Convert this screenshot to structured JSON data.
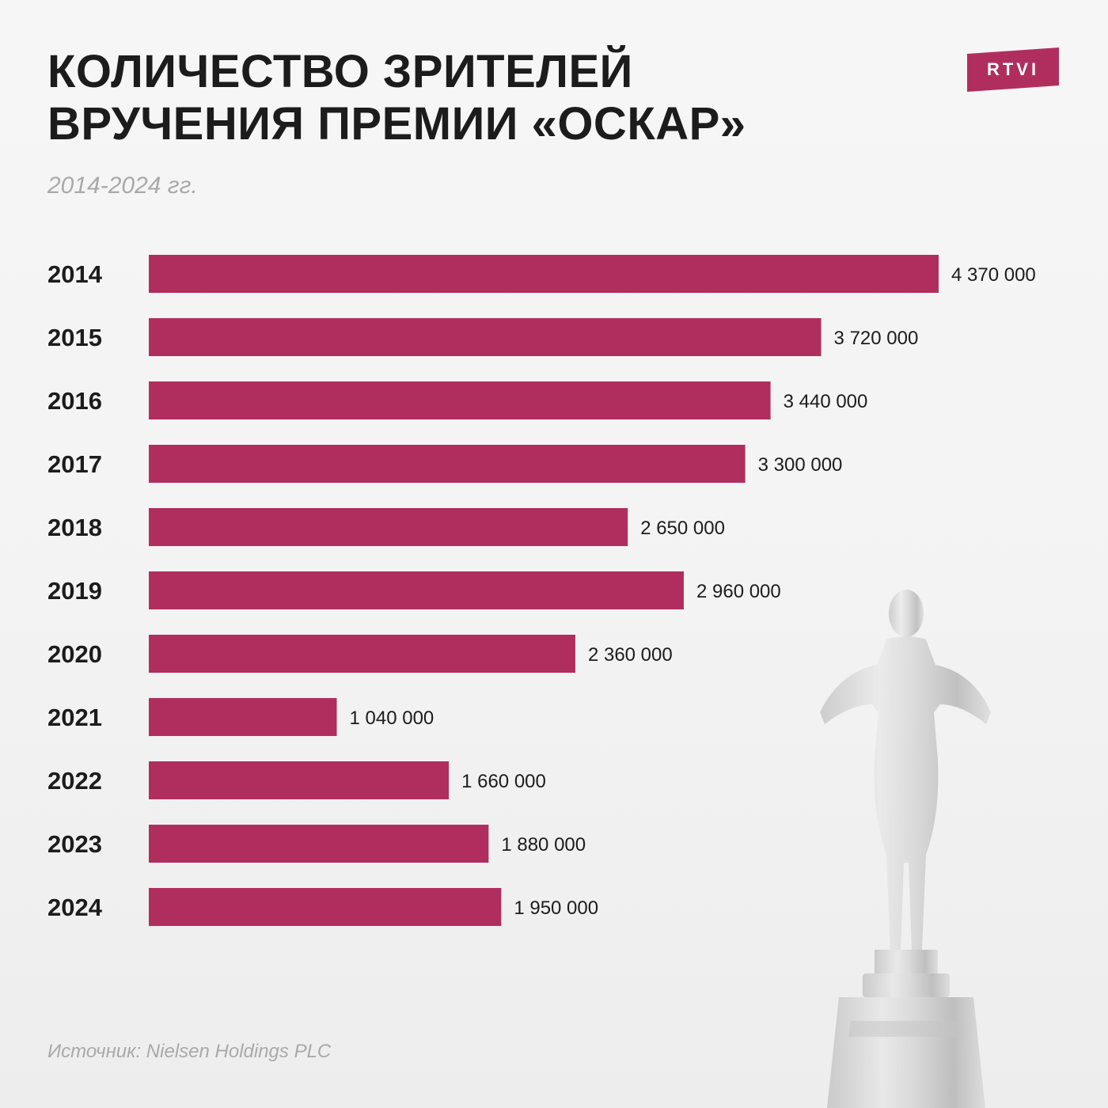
{
  "header": {
    "title_line1": "КОЛИЧЕСТВО ЗРИТЕЛЕЙ",
    "title_line2": "ВРУЧЕНИЯ ПРЕМИИ «ОСКАР»",
    "subtitle": "2014-2024 гг."
  },
  "logo": {
    "text": "RTVI",
    "color": "#b02e5e"
  },
  "footer": {
    "source": "Источник: Nielsen Holdings PLC"
  },
  "colors": {
    "bar": "#b02e5e",
    "text": "#1c1c1c",
    "muted": "#a9a9a9"
  },
  "chart_data": {
    "type": "bar",
    "orientation": "horizontal",
    "title": "КОЛИЧЕСТВО ЗРИТЕЛЕЙ ВРУЧЕНИЯ ПРЕМИИ «ОСКАР»",
    "subtitle": "2014-2024 гг.",
    "categories": [
      "2014",
      "2015",
      "2016",
      "2017",
      "2018",
      "2019",
      "2020",
      "2021",
      "2022",
      "2023",
      "2024"
    ],
    "values": [
      4370000,
      3720000,
      3440000,
      3300000,
      2650000,
      2960000,
      2360000,
      1040000,
      1660000,
      1880000,
      1950000
    ],
    "value_labels": [
      "4 370 000",
      "3 720 000",
      "3 440 000",
      "3 300 000",
      "2 650 000",
      "2 960 000",
      "2 360 000",
      "1 040 000",
      "1 660 000",
      "1 880 000",
      "1 950 000"
    ],
    "xlim": [
      0,
      4370000
    ],
    "grid": false,
    "legend": "none",
    "xlabel": "",
    "ylabel": ""
  }
}
